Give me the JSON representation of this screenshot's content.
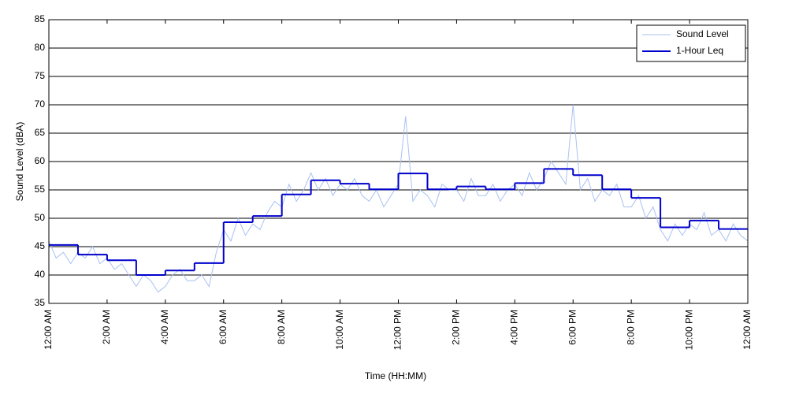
{
  "chart_data": {
    "type": "line",
    "xlabel": "Time (HH:MM)",
    "ylabel": "Sound Level (dBA)",
    "xlim": [
      0,
      24
    ],
    "ylim": [
      35,
      85
    ],
    "yticks": [
      35,
      40,
      45,
      50,
      55,
      60,
      65,
      70,
      75,
      80,
      85
    ],
    "xticks": [
      {
        "value": 0,
        "label": "12:00 AM"
      },
      {
        "value": 2,
        "label": "2:00 AM"
      },
      {
        "value": 4,
        "label": "4:00 AM"
      },
      {
        "value": 6,
        "label": "6:00 AM"
      },
      {
        "value": 8,
        "label": "8:00 AM"
      },
      {
        "value": 10,
        "label": "10:00 AM"
      },
      {
        "value": 12,
        "label": "12:00 PM"
      },
      {
        "value": 14,
        "label": "2:00 PM"
      },
      {
        "value": 16,
        "label": "4:00 PM"
      },
      {
        "value": 18,
        "label": "6:00 PM"
      },
      {
        "value": 20,
        "label": "8:00 PM"
      },
      {
        "value": 22,
        "label": "10:00 PM"
      },
      {
        "value": 24,
        "label": "12:00 AM"
      }
    ],
    "grid": true,
    "legend": "upper right",
    "series": [
      {
        "name": "Sound Level",
        "color": "#a9c1f2",
        "style": "line",
        "x": [
          0,
          0.25,
          0.5,
          0.75,
          1,
          1.25,
          1.5,
          1.75,
          2,
          2.25,
          2.5,
          2.75,
          3,
          3.25,
          3.5,
          3.75,
          4,
          4.25,
          4.5,
          4.75,
          5,
          5.25,
          5.5,
          5.75,
          6,
          6.25,
          6.5,
          6.75,
          7,
          7.25,
          7.5,
          7.75,
          8,
          8.25,
          8.5,
          8.75,
          9,
          9.25,
          9.5,
          9.75,
          10,
          10.25,
          10.5,
          10.75,
          11,
          11.25,
          11.5,
          11.75,
          12,
          12.25,
          12.5,
          12.75,
          13,
          13.25,
          13.5,
          13.75,
          14,
          14.25,
          14.5,
          14.75,
          15,
          15.25,
          15.5,
          15.75,
          16,
          16.25,
          16.5,
          16.75,
          17,
          17.25,
          17.5,
          17.75,
          18,
          18.25,
          18.5,
          18.75,
          19,
          19.25,
          19.5,
          19.75,
          20,
          20.25,
          20.5,
          20.75,
          21,
          21.25,
          21.5,
          21.75,
          22,
          22.25,
          22.5,
          22.75,
          23,
          23.25,
          23.5,
          23.75,
          24
        ],
        "values": [
          46,
          43,
          44,
          42,
          44,
          43,
          45,
          42,
          43,
          41,
          42,
          40,
          38,
          40,
          39,
          37,
          38,
          40,
          41,
          39,
          39,
          40,
          38,
          44,
          48,
          46,
          50,
          47,
          49,
          48,
          51,
          53,
          52,
          56,
          53,
          55,
          58,
          55,
          57,
          54,
          56,
          55,
          57,
          54,
          53,
          55,
          52,
          54,
          56,
          68,
          53,
          55,
          54,
          52,
          56,
          55,
          55,
          53,
          57,
          54,
          54,
          56,
          53,
          55,
          56,
          54,
          58,
          55,
          57,
          60,
          58,
          56,
          70,
          55,
          57,
          53,
          55,
          54,
          56,
          52,
          52,
          54,
          50,
          52,
          48,
          46,
          49,
          47,
          49,
          48,
          51,
          47,
          48,
          46,
          49,
          47,
          46
        ]
      },
      {
        "name": "1-Hour Leq",
        "color": "#0000cc",
        "style": "step",
        "x": [
          0,
          1,
          2,
          3,
          4,
          5,
          6,
          7,
          8,
          9,
          10,
          11,
          12,
          13,
          14,
          15,
          16,
          17,
          18,
          19,
          20,
          21,
          22,
          23
        ],
        "values": [
          45.3,
          43.6,
          42.6,
          40.0,
          40.8,
          42.1,
          49.3,
          50.4,
          54.2,
          56.7,
          56.1,
          55.1,
          57.9,
          55.1,
          55.6,
          55.1,
          56.2,
          58.7,
          57.6,
          55.1,
          53.6,
          48.4,
          49.6,
          48.1
        ]
      }
    ]
  }
}
